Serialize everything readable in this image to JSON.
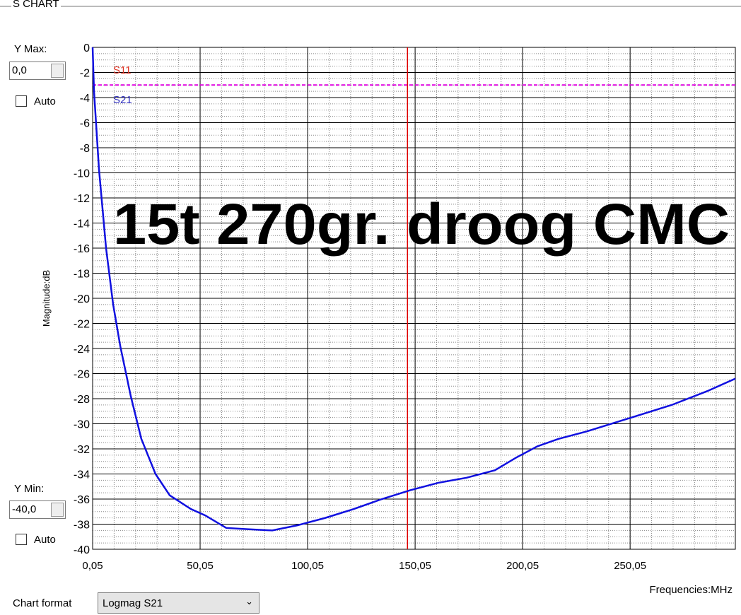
{
  "panel": {
    "title": "S CHART"
  },
  "controls": {
    "y_max_label": "Y Max:",
    "y_max_value": "0,0",
    "y_max_auto": "Auto",
    "y_min_label": "Y Min:",
    "y_min_value": "-40,0",
    "y_min_auto": "Auto",
    "chart_format_label": "Chart format",
    "chart_format_value": "Logmag S21"
  },
  "chart_data": {
    "type": "line",
    "title": "15t 270gr. droog CMC",
    "x_label": "Frequencies:MHz",
    "y_label": "Magnitude:dB",
    "xlim": [
      0.05,
      299
    ],
    "ylim": [
      -40,
      0
    ],
    "xticks": [
      {
        "value": 0.05,
        "label": "0,05"
      },
      {
        "value": 50.05,
        "label": "50,05"
      },
      {
        "value": 100.05,
        "label": "100,05"
      },
      {
        "value": 150.05,
        "label": "150,05"
      },
      {
        "value": 200.05,
        "label": "200,05"
      },
      {
        "value": 250.05,
        "label": "250,05"
      }
    ],
    "yticks": [
      0,
      -2,
      -4,
      -6,
      -8,
      -10,
      -12,
      -14,
      -16,
      -18,
      -20,
      -22,
      -24,
      -26,
      -28,
      -30,
      -32,
      -34,
      -36,
      -38,
      -40
    ],
    "grid": true,
    "minor_grid": true,
    "legend": [
      {
        "name": "S11",
        "color": "#e03020"
      },
      {
        "name": "S21",
        "color": "#3030c0"
      }
    ],
    "reference_line": {
      "value": -3,
      "color": "#e000e0"
    },
    "marker": {
      "x": 146.5,
      "color": "#e00000"
    },
    "series": [
      {
        "name": "S21",
        "color": "#1010e0",
        "x": [
          0.05,
          0.7,
          3,
          6.3,
          9.6,
          12.9,
          17.8,
          22.7,
          29.3,
          35.9,
          45.8,
          52.4,
          62.2,
          72.1,
          83.6,
          95.1,
          108.3,
          121.4,
          134.6,
          147.7,
          160.9,
          174,
          187.2,
          197,
          206.9,
          216.8,
          230,
          243.2,
          256.3,
          269.4,
          285.9,
          299
        ],
        "values": [
          0,
          -3.5,
          -9.7,
          -16,
          -20.5,
          -23.8,
          -27.8,
          -31.2,
          -34,
          -35.7,
          -36.8,
          -37.3,
          -38.3,
          -38.4,
          -38.5,
          -38.1,
          -37.5,
          -36.8,
          -36,
          -35.3,
          -34.7,
          -34.3,
          -33.7,
          -32.7,
          -31.8,
          -31.2,
          -30.6,
          -29.9,
          -29.2,
          -28.5,
          -27.4,
          -26.4
        ]
      }
    ]
  }
}
